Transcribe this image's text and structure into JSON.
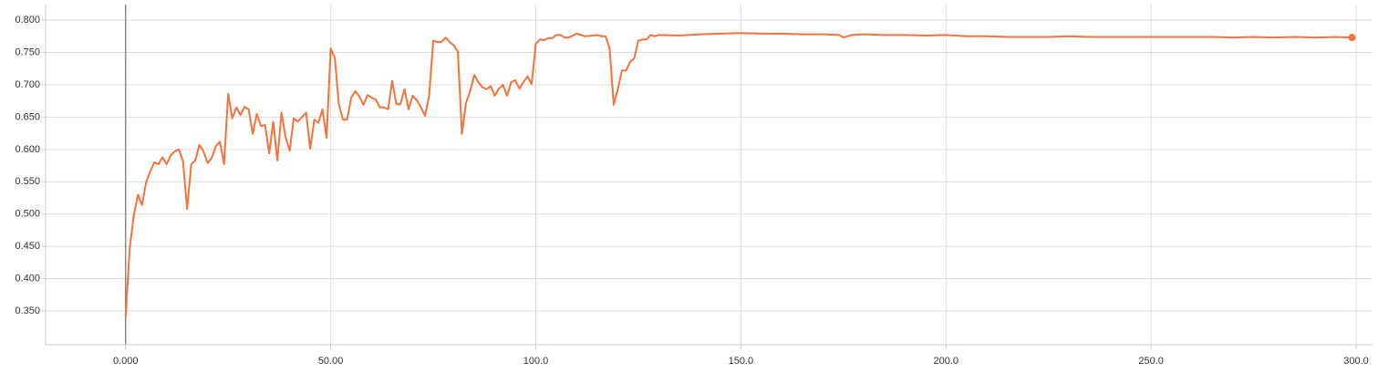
{
  "chart_data": {
    "type": "line",
    "x": [
      0,
      1,
      2,
      3,
      4,
      5,
      6,
      7,
      8,
      9,
      10,
      11,
      12,
      13,
      14,
      15,
      16,
      17,
      18,
      19,
      20,
      21,
      22,
      23,
      24,
      25,
      26,
      27,
      28,
      29,
      30,
      31,
      32,
      33,
      34,
      35,
      36,
      37,
      38,
      39,
      40,
      41,
      42,
      43,
      44,
      45,
      46,
      47,
      48,
      49,
      50,
      51,
      52,
      53,
      54,
      55,
      56,
      57,
      58,
      59,
      60,
      61,
      62,
      63,
      64,
      65,
      66,
      67,
      68,
      69,
      70,
      71,
      72,
      73,
      74,
      75,
      76,
      77,
      78,
      79,
      80,
      81,
      82,
      83,
      84,
      85,
      86,
      87,
      88,
      89,
      90,
      91,
      92,
      93,
      94,
      95,
      96,
      97,
      98,
      99,
      100,
      101,
      102,
      103,
      104,
      105,
      106,
      107,
      108,
      110,
      112,
      114,
      115,
      116,
      117,
      118,
      119,
      120,
      121,
      122,
      123,
      124,
      125,
      126,
      127,
      128,
      129,
      130,
      135,
      140,
      145,
      150,
      155,
      160,
      165,
      170,
      174,
      175,
      177,
      180,
      185,
      190,
      195,
      200,
      205,
      210,
      215,
      220,
      225,
      230,
      235,
      240,
      245,
      250,
      255,
      260,
      265,
      270,
      275,
      280,
      285,
      290,
      295,
      299
    ],
    "series": [
      {
        "color": "#f4733c",
        "values": [
          0.34,
          0.447,
          0.498,
          0.53,
          0.514,
          0.549,
          0.566,
          0.58,
          0.577,
          0.588,
          0.577,
          0.591,
          0.597,
          0.6,
          0.581,
          0.508,
          0.577,
          0.583,
          0.607,
          0.597,
          0.579,
          0.587,
          0.605,
          0.612,
          0.577,
          0.686,
          0.648,
          0.665,
          0.653,
          0.666,
          0.662,
          0.624,
          0.655,
          0.636,
          0.638,
          0.594,
          0.643,
          0.583,
          0.657,
          0.619,
          0.598,
          0.648,
          0.643,
          0.65,
          0.657,
          0.601,
          0.646,
          0.641,
          0.662,
          0.618,
          0.756,
          0.742,
          0.669,
          0.646,
          0.646,
          0.68,
          0.69,
          0.682,
          0.669,
          0.684,
          0.68,
          0.677,
          0.665,
          0.665,
          0.662,
          0.706,
          0.67,
          0.67,
          0.693,
          0.662,
          0.683,
          0.676,
          0.665,
          0.652,
          0.683,
          0.768,
          0.766,
          0.766,
          0.773,
          0.766,
          0.761,
          0.751,
          0.624,
          0.672,
          0.69,
          0.715,
          0.704,
          0.696,
          0.693,
          0.698,
          0.683,
          0.694,
          0.7,
          0.683,
          0.704,
          0.707,
          0.694,
          0.704,
          0.713,
          0.701,
          0.763,
          0.77,
          0.769,
          0.772,
          0.772,
          0.777,
          0.777,
          0.773,
          0.773,
          0.779,
          0.775,
          0.776,
          0.777,
          0.775,
          0.775,
          0.756,
          0.669,
          0.693,
          0.722,
          0.722,
          0.735,
          0.741,
          0.768,
          0.77,
          0.77,
          0.777,
          0.775,
          0.777,
          0.776,
          0.778,
          0.779,
          0.78,
          0.779,
          0.779,
          0.778,
          0.778,
          0.777,
          0.773,
          0.777,
          0.778,
          0.777,
          0.777,
          0.776,
          0.777,
          0.775,
          0.775,
          0.774,
          0.774,
          0.774,
          0.775,
          0.774,
          0.774,
          0.774,
          0.774,
          0.774,
          0.774,
          0.774,
          0.773,
          0.774,
          0.773,
          0.774,
          0.773,
          0.774,
          0.773
        ]
      }
    ],
    "xlim": [
      -19.5,
      304
    ],
    "ylim": [
      0.298,
      0.824
    ],
    "xticks": [
      {
        "value": 0,
        "label": "0.000"
      },
      {
        "value": 50,
        "label": "50.00"
      },
      {
        "value": 100,
        "label": "100.0"
      },
      {
        "value": 150,
        "label": "150.0"
      },
      {
        "value": 200,
        "label": "200.0"
      },
      {
        "value": 250,
        "label": "250.0"
      },
      {
        "value": 300,
        "label": "300.0"
      }
    ],
    "yticks": [
      {
        "value": 0.35,
        "label": "0.350"
      },
      {
        "value": 0.4,
        "label": "0.400"
      },
      {
        "value": 0.45,
        "label": "0.450"
      },
      {
        "value": 0.5,
        "label": "0.500"
      },
      {
        "value": 0.55,
        "label": "0.550"
      },
      {
        "value": 0.6,
        "label": "0.600"
      },
      {
        "value": 0.65,
        "label": "0.650"
      },
      {
        "value": 0.7,
        "label": "0.700"
      },
      {
        "value": 0.75,
        "label": "0.750"
      },
      {
        "value": 0.8,
        "label": "0.800"
      }
    ],
    "grid": true
  }
}
